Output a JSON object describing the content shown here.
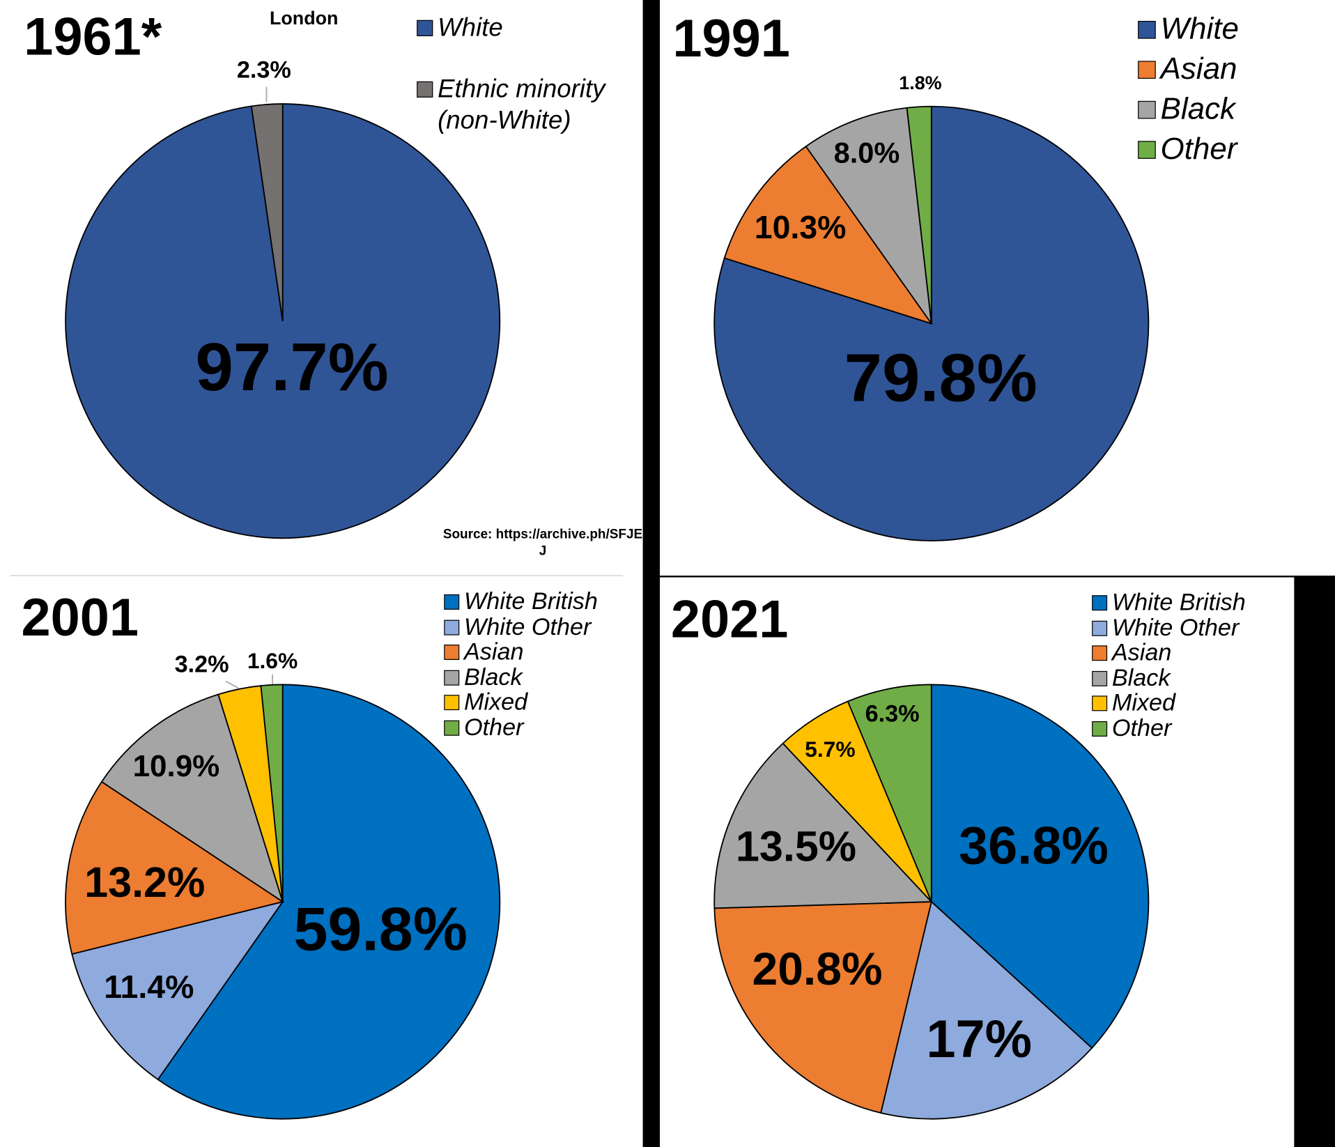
{
  "chart_data": [
    {
      "type": "pie",
      "title": "1961*",
      "subtitle": "London",
      "annotation": "Source: https://archive.ph/SFJEJ",
      "categories": [
        "White",
        "Ethnic minority (non-White)"
      ],
      "values": [
        97.7,
        2.3
      ],
      "value_labels": [
        "97.7%",
        "2.3%"
      ],
      "colors": [
        "#2f5597",
        "#767171"
      ]
    },
    {
      "type": "pie",
      "title": "1991",
      "categories": [
        "White",
        "Asian",
        "Black",
        "Other"
      ],
      "values": [
        79.8,
        10.3,
        8.0,
        1.8
      ],
      "value_labels": [
        "79.8%",
        "10.3%",
        "8.0%",
        "1.8%"
      ],
      "colors": [
        "#2f5597",
        "#ed7d31",
        "#a5a5a5",
        "#70ad47"
      ]
    },
    {
      "type": "pie",
      "title": "2001",
      "categories": [
        "White British",
        "White Other",
        "Asian",
        "Black",
        "Mixed",
        "Other"
      ],
      "values": [
        59.8,
        11.4,
        13.2,
        10.9,
        3.2,
        1.6
      ],
      "value_labels": [
        "59.8%",
        "11.4%",
        "13.2%",
        "10.9%",
        "3.2%",
        "1.6%"
      ],
      "colors": [
        "#0070c0",
        "#8faadc",
        "#ed7d31",
        "#a5a5a5",
        "#ffc000",
        "#70ad47"
      ]
    },
    {
      "type": "pie",
      "title": "2021",
      "categories": [
        "White British",
        "White Other",
        "Asian",
        "Black",
        "Mixed",
        "Other"
      ],
      "values": [
        36.8,
        17,
        20.8,
        13.5,
        5.7,
        6.3
      ],
      "value_labels": [
        "36.8%",
        "17%",
        "20.8%",
        "13.5%",
        "5.7%",
        "6.3%"
      ],
      "colors": [
        "#0070c0",
        "#8faadc",
        "#ed7d31",
        "#a5a5a5",
        "#ffc000",
        "#70ad47"
      ]
    }
  ]
}
